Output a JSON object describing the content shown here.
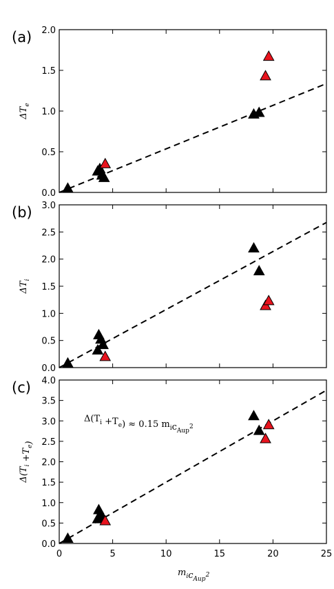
{
  "chart_data": [
    {
      "type": "scatter",
      "panel_label": "(a)",
      "ylabel_tex": [
        "ΔT",
        "e"
      ],
      "xlim": [
        0,
        25
      ],
      "ylim": [
        0,
        2.0
      ],
      "yticks": [
        "0.0",
        "0.5",
        "1.0",
        "1.5",
        "2.0"
      ],
      "xticks": [],
      "grid": false,
      "fit_slope": 0.0535,
      "series": [
        {
          "color": "#000000",
          "points": [
            [
              0.8,
              0.05
            ],
            [
              3.6,
              0.26
            ],
            [
              3.8,
              0.29
            ],
            [
              4.0,
              0.21
            ],
            [
              4.2,
              0.18
            ],
            [
              18.2,
              0.96
            ],
            [
              18.7,
              0.98
            ]
          ]
        },
        {
          "color": "#e8141e",
          "points": [
            [
              4.3,
              0.35
            ],
            [
              19.3,
              1.43
            ],
            [
              19.6,
              1.67
            ]
          ]
        }
      ]
    },
    {
      "type": "scatter",
      "panel_label": "(b)",
      "ylabel_tex": [
        "ΔT",
        "i"
      ],
      "xlim": [
        0,
        25
      ],
      "ylim": [
        0,
        3.0
      ],
      "yticks": [
        "0.0",
        "0.5",
        "1.0",
        "1.5",
        "2.0",
        "2.5",
        "3.0"
      ],
      "xticks": [],
      "grid": false,
      "fit_slope": 0.107,
      "series": [
        {
          "color": "#000000",
          "points": [
            [
              0.8,
              0.08
            ],
            [
              3.6,
              0.32
            ],
            [
              3.7,
              0.6
            ],
            [
              3.9,
              0.52
            ],
            [
              4.1,
              0.42
            ],
            [
              18.2,
              2.2
            ],
            [
              18.7,
              1.78
            ]
          ]
        },
        {
          "color": "#e8141e",
          "points": [
            [
              4.3,
              0.2
            ],
            [
              19.3,
              1.14
            ],
            [
              19.6,
              1.23
            ]
          ]
        }
      ]
    },
    {
      "type": "scatter",
      "panel_label": "(c)",
      "ylabel_tex": [
        "Δ(T",
        "i",
        " +T",
        "e",
        ")"
      ],
      "xlabel_tex": [
        "m",
        "i",
        "c",
        "Aup",
        "2"
      ],
      "annotation": [
        "Δ(T",
        "i",
        " +T",
        "e",
        ") ≈ 0.15 m",
        "i",
        "c",
        "Aup",
        "2"
      ],
      "xlim": [
        0,
        25
      ],
      "ylim": [
        0,
        4.0
      ],
      "yticks": [
        "0.0",
        "0.5",
        "1.0",
        "1.5",
        "2.0",
        "2.5",
        "3.0",
        "3.5",
        "4.0"
      ],
      "xticks": [
        "0",
        "5",
        "10",
        "15",
        "20",
        "25"
      ],
      "grid": false,
      "fit_slope": 0.15,
      "series": [
        {
          "color": "#000000",
          "points": [
            [
              0.8,
              0.12
            ],
            [
              3.6,
              0.6
            ],
            [
              3.7,
              0.82
            ],
            [
              3.9,
              0.7
            ],
            [
              4.1,
              0.62
            ],
            [
              18.2,
              3.12
            ],
            [
              18.7,
              2.76
            ]
          ]
        },
        {
          "color": "#e8141e",
          "points": [
            [
              4.3,
              0.55
            ],
            [
              19.3,
              2.56
            ],
            [
              19.6,
              2.9
            ]
          ]
        }
      ]
    }
  ]
}
